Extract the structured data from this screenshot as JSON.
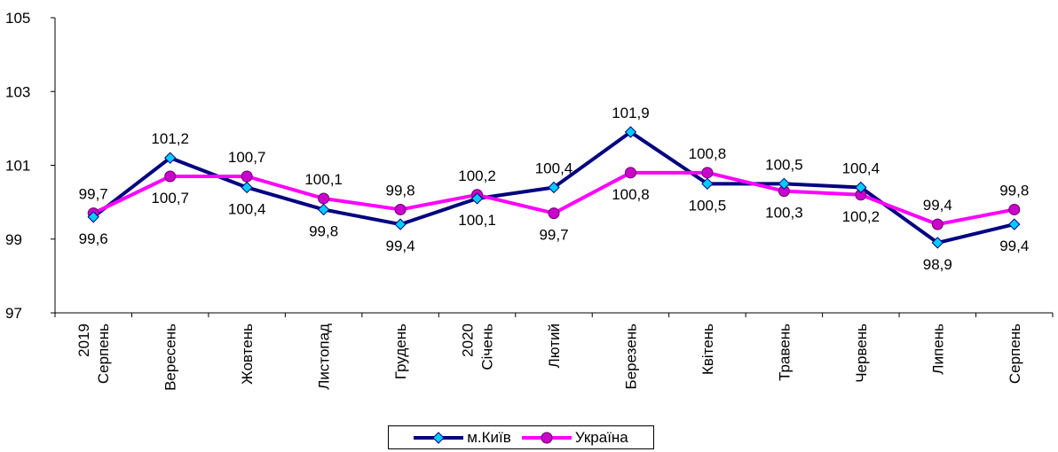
{
  "chart_data": {
    "type": "line",
    "categories": [
      [
        "2019",
        "Серпень"
      ],
      [
        "Вересень"
      ],
      [
        "Жовтень"
      ],
      [
        "Листопад"
      ],
      [
        "Грудень"
      ],
      [
        "2020",
        "Січень"
      ],
      [
        "Лютий"
      ],
      [
        "Березень"
      ],
      [
        "Квітень"
      ],
      [
        "Травень"
      ],
      [
        "Червень"
      ],
      [
        "Липень"
      ],
      [
        "Серпень"
      ]
    ],
    "series": [
      {
        "name": "м.Київ",
        "color": "#000080",
        "marker": "diamond",
        "marker_color": "#00ccff",
        "values": [
          99.6,
          101.2,
          100.4,
          99.8,
          99.4,
          100.1,
          100.4,
          101.9,
          100.5,
          100.5,
          100.4,
          98.9,
          99.4
        ],
        "labels": [
          "99,6",
          "101,2",
          "100,4",
          "99,8",
          "99,4",
          "100,1",
          "100,4",
          "101,9",
          "100,5",
          "100,5",
          "100,4",
          "98,9",
          "99,4"
        ],
        "label_side": [
          "below",
          "above",
          "below",
          "below",
          "below",
          "below",
          "above",
          "above",
          "below",
          "above",
          "above",
          "below",
          "below"
        ]
      },
      {
        "name": "Україна",
        "color": "#ff00ff",
        "marker": "circle",
        "marker_color": "#cc00cc",
        "values": [
          99.7,
          100.7,
          100.7,
          100.1,
          99.8,
          100.2,
          99.7,
          100.8,
          100.8,
          100.3,
          100.2,
          99.4,
          99.8
        ],
        "labels": [
          "99,7",
          "100,7",
          "100,7",
          "100,1",
          "99,8",
          "100,2",
          "99,7",
          "100,8",
          "100,8",
          "100,3",
          "100,2",
          "99,4",
          "99,8"
        ],
        "label_side": [
          "above",
          "below",
          "above",
          "above",
          "above",
          "above",
          "below",
          "below",
          "above",
          "below",
          "below",
          "above",
          "above"
        ]
      }
    ],
    "yticks": [
      "97",
      "99",
      "101",
      "103",
      "105"
    ],
    "ylim": [
      97,
      105
    ],
    "grid": false,
    "legend_position": "bottom-center",
    "title": "",
    "xlabel": "",
    "ylabel": ""
  }
}
